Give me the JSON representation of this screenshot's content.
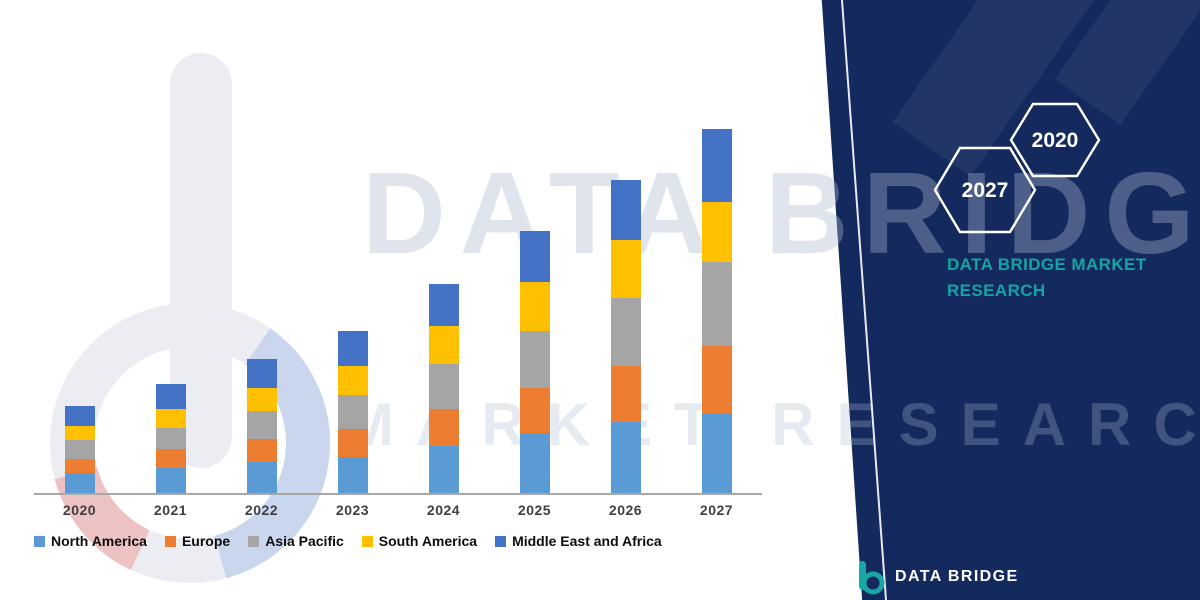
{
  "watermark": {
    "line1": "DATA BRIDGE",
    "line2": "MARKET RESEARCH"
  },
  "side_panel": {
    "hexagon_left": "2027",
    "hexagon_right": "2020",
    "tagline_line1": "DATA BRIDGE MARKET",
    "tagline_line2": "RESEARCH",
    "colors": {
      "panel_navy": "#14295D",
      "accent_teal": "#16A3A3"
    }
  },
  "footer": {
    "brand": "DATA BRIDGE"
  },
  "chart_data": {
    "type": "bar",
    "stacked": true,
    "title": "",
    "xlabel": "",
    "ylabel": "",
    "units": "relative market size (no axis values shown)",
    "categories": [
      "2020",
      "2021",
      "2022",
      "2023",
      "2024",
      "2025",
      "2026",
      "2027"
    ],
    "series": [
      {
        "name": "North America",
        "color": "#5B9BD5",
        "values": [
          5.5,
          7.0,
          8.5,
          10.0,
          13.0,
          16.5,
          19.5,
          22.0
        ]
      },
      {
        "name": "Europe",
        "color": "#ED7D31",
        "values": [
          4.0,
          5.0,
          6.5,
          7.5,
          10.0,
          12.5,
          15.5,
          18.5
        ]
      },
      {
        "name": "Asia Pacific",
        "color": "#A5A5A5",
        "values": [
          5.0,
          6.0,
          7.5,
          9.5,
          12.5,
          15.5,
          18.5,
          23.0
        ]
      },
      {
        "name": "South America",
        "color": "#FFC000",
        "values": [
          4.0,
          5.0,
          6.5,
          8.0,
          10.5,
          13.5,
          16.0,
          16.5
        ]
      },
      {
        "name": "Middle East and Africa",
        "color": "#4472C4",
        "values": [
          5.5,
          7.0,
          8.0,
          9.5,
          11.5,
          14.0,
          16.5,
          20.0
        ]
      }
    ],
    "ylim": [
      0,
      110
    ],
    "grid": false,
    "y_axis_visible": false,
    "legend_position": "bottom"
  }
}
